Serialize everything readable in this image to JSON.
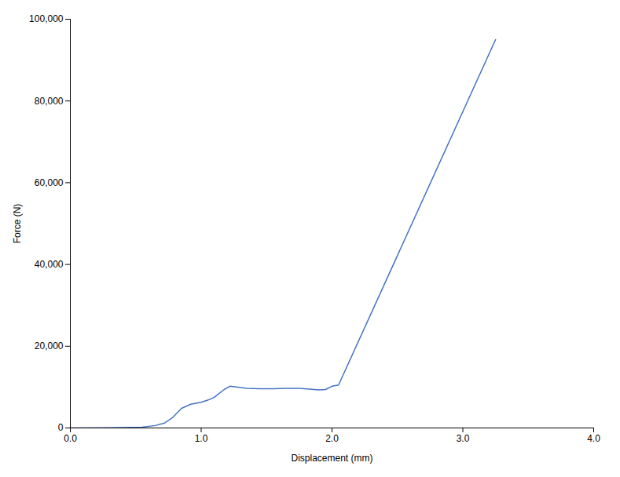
{
  "chart_data": {
    "type": "line",
    "x": [
      0.0,
      0.3,
      0.55,
      0.65,
      0.72,
      0.78,
      0.85,
      0.92,
      1.0,
      1.05,
      1.1,
      1.18,
      1.22,
      1.28,
      1.35,
      1.45,
      1.55,
      1.65,
      1.75,
      1.83,
      1.9,
      1.95,
      2.0,
      2.05,
      3.25
    ],
    "values": [
      0,
      50,
      200,
      600,
      1200,
      2500,
      4800,
      5800,
      6300,
      6800,
      7500,
      9500,
      10200,
      10000,
      9700,
      9600,
      9600,
      9700,
      9700,
      9500,
      9300,
      9400,
      10200,
      10500,
      95000
    ],
    "color": "#4472C4",
    "xlabel": "Displacement (mm)",
    "ylabel": "Force (N)",
    "xlim": [
      0.0,
      4.0
    ],
    "ylim": [
      0,
      100000
    ],
    "xticks": [
      {
        "value": 0.0,
        "label": "0.0"
      },
      {
        "value": 1.0,
        "label": "1.0"
      },
      {
        "value": 2.0,
        "label": "2.0"
      },
      {
        "value": 3.0,
        "label": "3.0"
      },
      {
        "value": 4.0,
        "label": "4.0"
      }
    ],
    "yticks": [
      0,
      {
        "value": 20000,
        "label": "20,000"
      },
      {
        "value": 40000,
        "label": "40,000"
      },
      {
        "value": 60000,
        "label": "60,000"
      },
      {
        "value": 80000,
        "label": "80,000"
      },
      {
        "value": 100000,
        "label": "100,000"
      }
    ],
    "grid": false
  }
}
